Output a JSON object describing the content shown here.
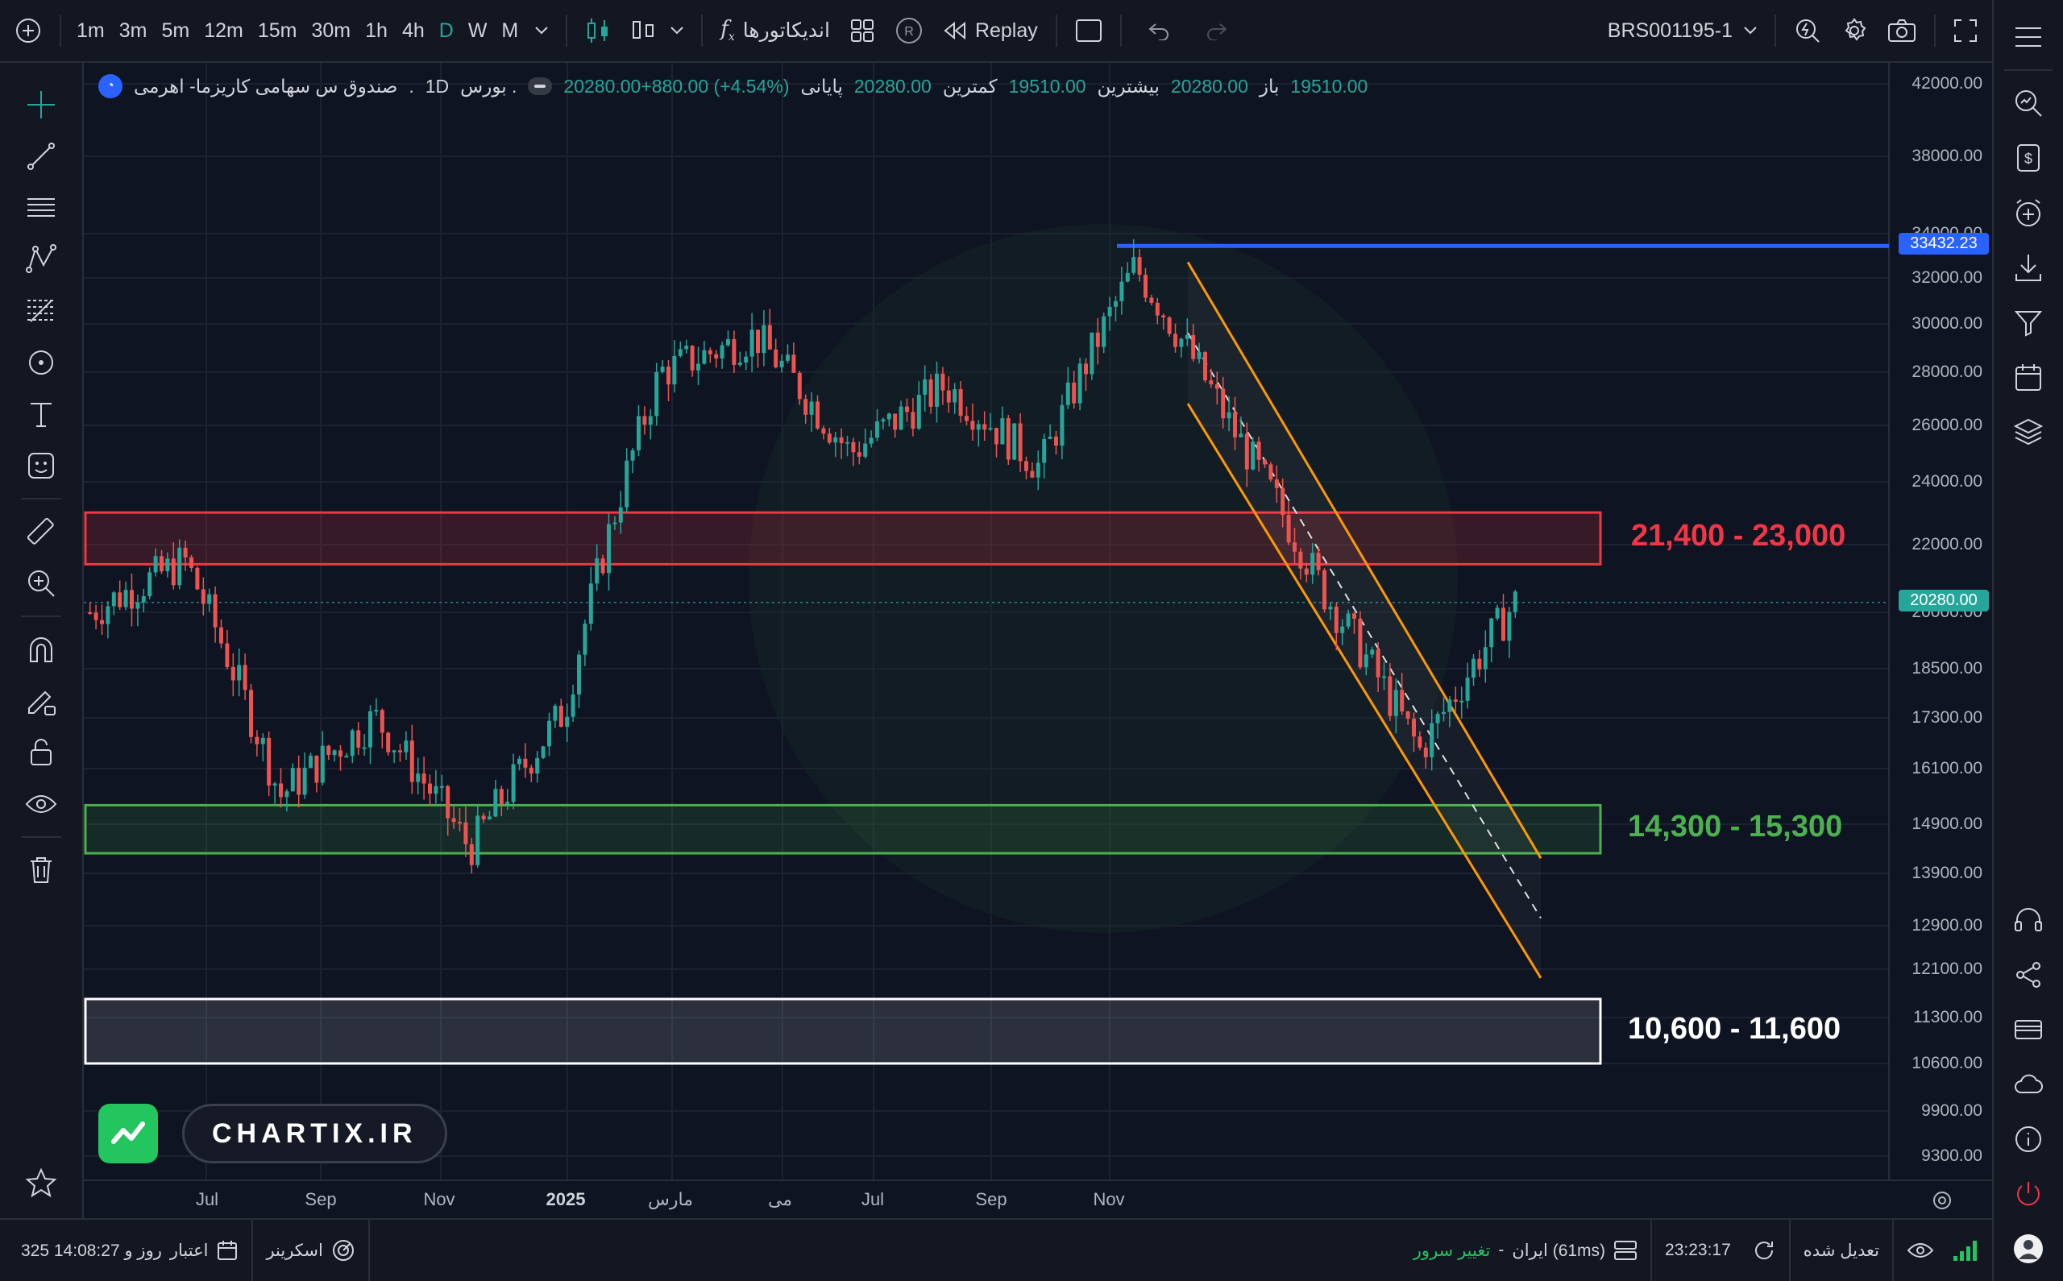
{
  "toolbar": {
    "intervals": [
      "1m",
      "3m",
      "5m",
      "12m",
      "15m",
      "30m",
      "1h",
      "4h",
      "D",
      "W",
      "M"
    ],
    "active_interval": "D",
    "indicators_label": "اندیکاتورها",
    "replay_label": "Replay",
    "symbol_code": "BRS001195-1"
  },
  "legend": {
    "symbol_name": "صندوق س سهامی کاریزما- اهرمی",
    "separator": ".",
    "interval": "1D",
    "exchange": "بورس .",
    "open_label": "باز",
    "open_value": "19510.00",
    "high_label": "بیشترین",
    "high_value": "20280.00",
    "low_label": "کمترین",
    "low_value": "19510.00",
    "close_label": "پایانی",
    "close_value": "20280.00",
    "change_text": "20280.00+880.00 (+4.54%)"
  },
  "price_axis": {
    "ticks": [
      "42000.00",
      "38000.00",
      "34000.00",
      "32000.00",
      "30000.00",
      "28000.00",
      "26000.00",
      "24000.00",
      "22000.00",
      "20000.00",
      "18500.00",
      "17300.00",
      "16100.00",
      "14900.00",
      "13900.00",
      "12900.00",
      "12100.00",
      "11300.00",
      "10600.00",
      "9900.00",
      "9300.00"
    ],
    "current_price_tag": "20280.00",
    "line_price_tag": "33432.23"
  },
  "time_axis": {
    "labels": [
      "Jul",
      "Sep",
      "Nov",
      "2025",
      "مارس",
      "می",
      "Jul",
      "Sep",
      "Nov"
    ]
  },
  "zones": {
    "resistance_label": "21,400 - 23,000",
    "support_label": "14,300 - 15,300",
    "target_label": "10,600 - 11,600"
  },
  "brand": {
    "name": "CHARTIX.IR"
  },
  "colors": {
    "up": "#26a69a",
    "down": "#ef5350",
    "resistance": "#f23645",
    "support": "#4caf50",
    "channel": "#ff9800",
    "horizontal_line": "#2962ff",
    "target": "#ffffff"
  },
  "bottombar": {
    "credit_label": "اعتبار",
    "credit_value": "325 روز و 14:08:27",
    "screener_label": "اسکرینر",
    "change_server_label": "تغییر سرور",
    "dash": "-",
    "server_label": "ایران (61ms)",
    "time": "23:23:17",
    "adjusted_label": "تعدیل شده"
  },
  "chart_data": {
    "type": "candlestick",
    "title": "صندوق س سهامی کاریزما- اهرمی",
    "interval": "1D",
    "ohlc_last": {
      "open": 19510,
      "high": 20280,
      "low": 19510,
      "close": 20280,
      "change": 880,
      "change_pct": 4.54
    },
    "x_ticks": [
      "Jul",
      "Sep",
      "Nov",
      "2025",
      "مارس",
      "می",
      "Jul",
      "Sep",
      "Nov"
    ],
    "y_scale": "log",
    "y_range": [
      9000,
      43000
    ],
    "approx_close_path": [
      {
        "x": "2024-06",
        "y": 20000
      },
      {
        "x": "2024-07",
        "y": 21500
      },
      {
        "x": "2024-08",
        "y": 15500
      },
      {
        "x": "2024-09",
        "y": 17300
      },
      {
        "x": "2024-10",
        "y": 14400
      },
      {
        "x": "2024-11",
        "y": 17500
      },
      {
        "x": "2024-12",
        "y": 28000
      },
      {
        "x": "2025-01",
        "y": 29500
      },
      {
        "x": "2025-02",
        "y": 25000
      },
      {
        "x": "2025-03",
        "y": 27500
      },
      {
        "x": "2025-04",
        "y": 24500
      },
      {
        "x": "2025-05",
        "y": 32500
      },
      {
        "x": "2025-06",
        "y": 26000
      },
      {
        "x": "2025-07",
        "y": 20500
      },
      {
        "x": "2025-08",
        "y": 16500
      },
      {
        "x": "2025-09",
        "y": 20280
      }
    ],
    "horizontal_line": 33432.23,
    "zones": [
      {
        "label": "21,400 - 23,000",
        "low": 21400,
        "high": 23000
      },
      {
        "label": "14,300 - 15,300",
        "low": 14300,
        "high": 15300
      },
      {
        "label": "10,600 - 11,600",
        "low": 10600,
        "high": 11600
      }
    ],
    "descending_channel": true
  }
}
